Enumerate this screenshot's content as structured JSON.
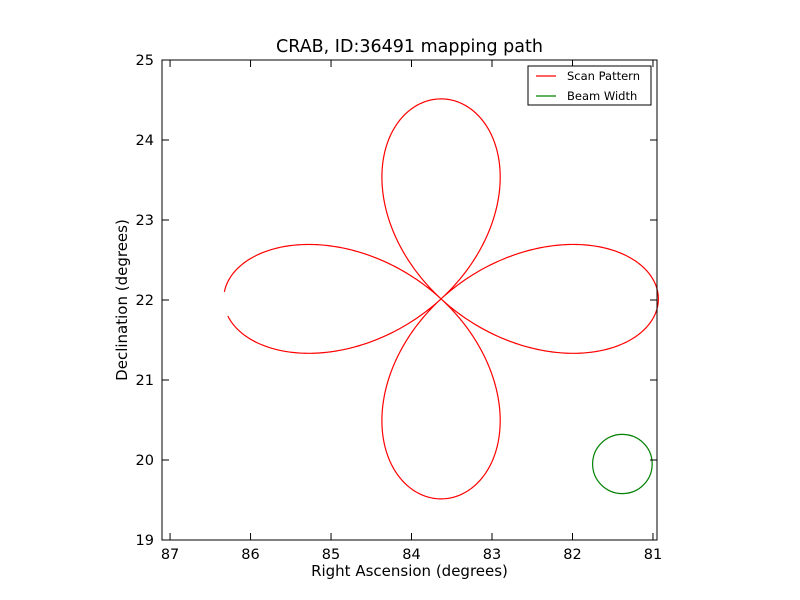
{
  "chart_data": {
    "type": "line",
    "title": "CRAB, ID:36491 mapping path",
    "xlabel": "Right Ascension (degrees)",
    "ylabel": "Declination (degrees)",
    "xlim": [
      87.1,
      80.95
    ],
    "ylim": [
      19,
      25
    ],
    "x_ticks": [
      "87",
      "86",
      "85",
      "84",
      "83",
      "82",
      "81"
    ],
    "y_ticks": [
      "19",
      "20",
      "21",
      "22",
      "23",
      "24",
      "25"
    ],
    "grid": false,
    "legend_placement": "top-right",
    "series": [
      {
        "name": "Scan Pattern",
        "color": "#ff0000",
        "kind": "rose-curve",
        "center": [
          83.633,
          22.014
        ],
        "petals": 4,
        "amplitude_ra": 2.7,
        "amplitude_dec": 2.5,
        "start_angle_deg": 2,
        "end_angle_deg": 355
      },
      {
        "name": "Beam Width",
        "color": "#008000",
        "kind": "circle",
        "center": [
          81.38,
          19.95
        ],
        "radius_ra": 0.37,
        "radius_dec": 0.37
      }
    ]
  }
}
